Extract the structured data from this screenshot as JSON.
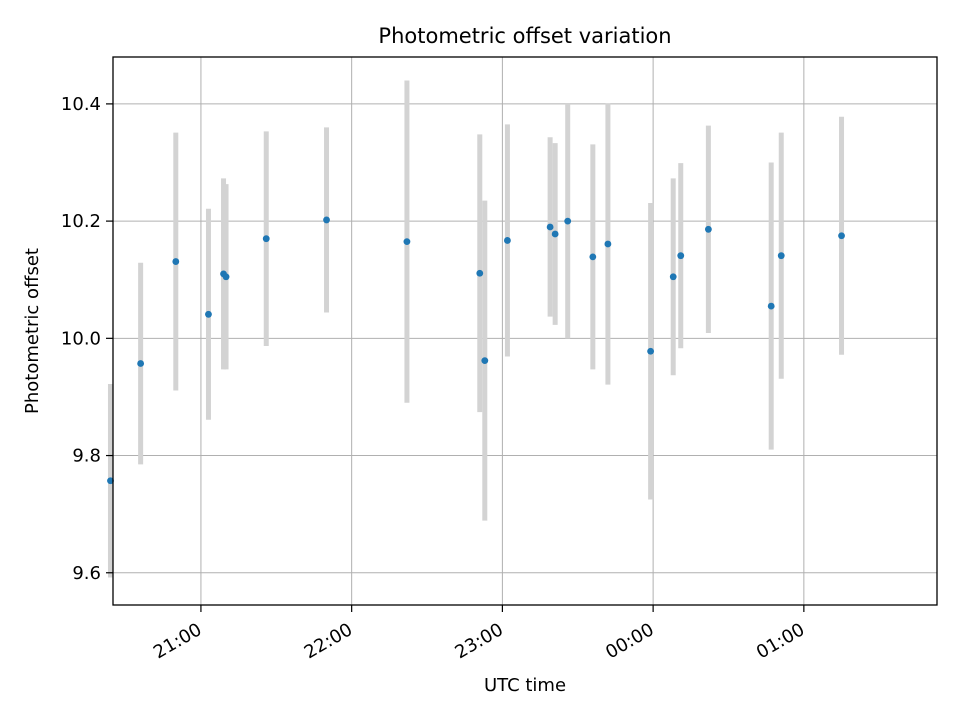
{
  "chart_data": {
    "type": "scatter",
    "title": "Photometric offset variation",
    "xlabel": "UTC time",
    "ylabel": "Photometric offset",
    "x_axis": {
      "kind": "time",
      "range": [
        "20:25",
        "01:53"
      ],
      "ticks": [
        "21:00",
        "22:00",
        "23:00",
        "00:00",
        "01:00"
      ],
      "tick_label_rotation_deg": 30
    },
    "ylim": [
      9.545,
      10.48
    ],
    "y_ticks": [
      "9.6",
      "9.8",
      "10.0",
      "10.2",
      "10.4"
    ],
    "grid": true,
    "series": [
      {
        "marker_color": "#1f77b4",
        "errorbar_color": "#d3d3d3",
        "points": [
          {
            "t": "20:24",
            "y": 9.757,
            "err": 0.165
          },
          {
            "t": "20:36",
            "y": 9.957,
            "err": 0.172
          },
          {
            "t": "20:50",
            "y": 10.131,
            "err": 0.22
          },
          {
            "t": "21:03",
            "y": 10.041,
            "err": 0.18
          },
          {
            "t": "21:09",
            "y": 10.11,
            "err": 0.163
          },
          {
            "t": "21:10",
            "y": 10.105,
            "err": 0.158
          },
          {
            "t": "21:26",
            "y": 10.17,
            "err": 0.183
          },
          {
            "t": "21:50",
            "y": 10.202,
            "err": 0.158
          },
          {
            "t": "22:22",
            "y": 10.165,
            "err": 0.275
          },
          {
            "t": "22:51",
            "y": 10.111,
            "err": 0.237
          },
          {
            "t": "22:53",
            "y": 9.962,
            "err": 0.273
          },
          {
            "t": "23:02",
            "y": 10.167,
            "err": 0.198
          },
          {
            "t": "23:19",
            "y": 10.19,
            "err": 0.153
          },
          {
            "t": "23:21",
            "y": 10.178,
            "err": 0.155
          },
          {
            "t": "23:26",
            "y": 10.2,
            "err": 0.2
          },
          {
            "t": "23:36",
            "y": 10.139,
            "err": 0.192
          },
          {
            "t": "23:42",
            "y": 10.161,
            "err": 0.24
          },
          {
            "t": "23:59",
            "y": 9.978,
            "err": 0.253
          },
          {
            "t": "00:08",
            "y": 10.105,
            "err": 0.168
          },
          {
            "t": "00:11",
            "y": 10.141,
            "err": 0.158
          },
          {
            "t": "00:22",
            "y": 10.186,
            "err": 0.177
          },
          {
            "t": "00:47",
            "y": 10.055,
            "err": 0.245
          },
          {
            "t": "00:51",
            "y": 10.141,
            "err": 0.21
          },
          {
            "t": "01:15",
            "y": 10.175,
            "err": 0.203
          }
        ]
      }
    ]
  }
}
